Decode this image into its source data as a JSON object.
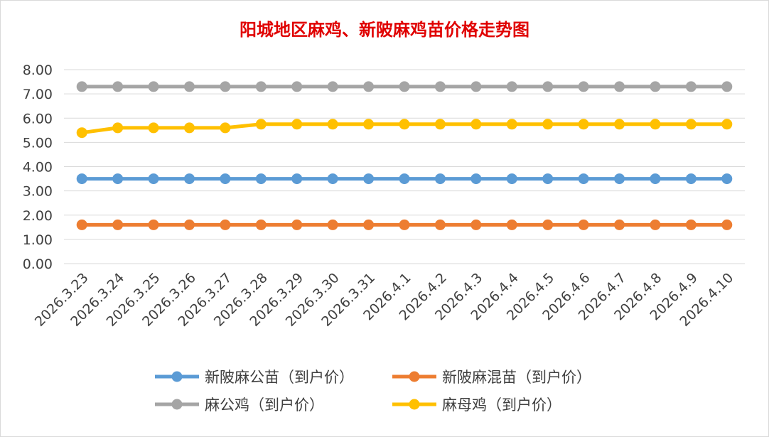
{
  "chart_data": {
    "type": "line",
    "title": "阳城地区麻鸡、新陂麻鸡苗价格走势图",
    "xlabel": "",
    "ylabel": "",
    "ylim": [
      0,
      8
    ],
    "yticks": [
      "0.00",
      "1.00",
      "2.00",
      "3.00",
      "4.00",
      "5.00",
      "6.00",
      "7.00",
      "8.00"
    ],
    "grid": true,
    "legend_position": "bottom",
    "categories": [
      "2026.3.23",
      "2026.3.24",
      "2026.3.25",
      "2026.3.26",
      "2026.3.27",
      "2026.3.28",
      "2026.3.29",
      "2026.3.30",
      "2026.3.31",
      "2026.4.1",
      "2026.4.2",
      "2026.4.3",
      "2026.4.4",
      "2026.4.5",
      "2026.4.6",
      "2026.4.7",
      "2026.4.8",
      "2026.4.9",
      "2026.4.10"
    ],
    "series": [
      {
        "name": "新陂麻公苗（到户价）",
        "color": "#5b9bd5",
        "values": [
          3.5,
          3.5,
          3.5,
          3.5,
          3.5,
          3.5,
          3.5,
          3.5,
          3.5,
          3.5,
          3.5,
          3.5,
          3.5,
          3.5,
          3.5,
          3.5,
          3.5,
          3.5,
          3.5
        ]
      },
      {
        "name": "新陂麻混苗（到户价）",
        "color": "#ed7d31",
        "values": [
          1.6,
          1.6,
          1.6,
          1.6,
          1.6,
          1.6,
          1.6,
          1.6,
          1.6,
          1.6,
          1.6,
          1.6,
          1.6,
          1.6,
          1.6,
          1.6,
          1.6,
          1.6,
          1.6
        ]
      },
      {
        "name": "麻公鸡（到户价）",
        "color": "#a5a5a5",
        "values": [
          7.3,
          7.3,
          7.3,
          7.3,
          7.3,
          7.3,
          7.3,
          7.3,
          7.3,
          7.3,
          7.3,
          7.3,
          7.3,
          7.3,
          7.3,
          7.3,
          7.3,
          7.3,
          7.3
        ]
      },
      {
        "name": "麻母鸡（到户价）",
        "color": "#ffc000",
        "values": [
          5.4,
          5.6,
          5.6,
          5.6,
          5.6,
          5.75,
          5.75,
          5.75,
          5.75,
          5.75,
          5.75,
          5.75,
          5.75,
          5.75,
          5.75,
          5.75,
          5.75,
          5.75,
          5.75
        ]
      }
    ]
  }
}
